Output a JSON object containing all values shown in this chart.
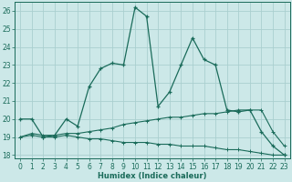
{
  "line1_x": [
    0,
    1,
    2,
    3,
    4,
    5,
    6,
    7,
    8,
    9,
    10,
    11,
    12,
    13,
    14,
    15,
    16,
    17,
    18,
    19,
    20,
    21,
    22,
    23
  ],
  "line1_y": [
    20.0,
    20.0,
    19.0,
    19.1,
    20.0,
    19.6,
    21.8,
    22.8,
    23.1,
    23.0,
    26.2,
    25.7,
    20.7,
    21.5,
    23.0,
    24.5,
    23.3,
    23.0,
    20.5,
    20.4,
    20.5,
    19.3,
    18.5,
    18.0
  ],
  "line2_x": [
    0,
    1,
    2,
    3,
    4,
    5,
    6,
    7,
    8,
    9,
    10,
    11,
    12,
    13,
    14,
    15,
    16,
    17,
    18,
    19,
    20,
    21,
    22,
    23
  ],
  "line2_y": [
    19.0,
    19.2,
    19.1,
    19.1,
    19.2,
    19.2,
    19.3,
    19.4,
    19.5,
    19.7,
    19.8,
    19.9,
    20.0,
    20.1,
    20.1,
    20.2,
    20.3,
    20.3,
    20.4,
    20.5,
    20.5,
    20.5,
    19.3,
    18.5
  ],
  "line3_x": [
    0,
    1,
    2,
    3,
    4,
    5,
    6,
    7,
    8,
    9,
    10,
    11,
    12,
    13,
    14,
    15,
    16,
    17,
    18,
    19,
    20,
    21,
    22,
    23
  ],
  "line3_y": [
    19.0,
    19.1,
    19.0,
    19.0,
    19.1,
    19.0,
    18.9,
    18.9,
    18.8,
    18.7,
    18.7,
    18.7,
    18.6,
    18.6,
    18.5,
    18.5,
    18.5,
    18.4,
    18.3,
    18.3,
    18.2,
    18.1,
    18.0,
    18.0
  ],
  "line_color": "#1a6b5a",
  "bg_color": "#cce8e8",
  "grid_color": "#aacfcf",
  "xlabel": "Humidex (Indice chaleur)",
  "xlim": [
    -0.5,
    23.5
  ],
  "ylim": [
    17.8,
    26.5
  ],
  "yticks": [
    18,
    19,
    20,
    21,
    22,
    23,
    24,
    25,
    26
  ],
  "xticks": [
    0,
    1,
    2,
    3,
    4,
    5,
    6,
    7,
    8,
    9,
    10,
    11,
    12,
    13,
    14,
    15,
    16,
    17,
    18,
    19,
    20,
    21,
    22,
    23
  ],
  "xtick_labels": [
    "0",
    "1",
    "2",
    "3",
    "4",
    "5",
    "6",
    "7",
    "8",
    "9",
    "10",
    "11",
    "12",
    "13",
    "14",
    "15",
    "16",
    "17",
    "18",
    "19",
    "20",
    "21",
    "22",
    "23"
  ]
}
